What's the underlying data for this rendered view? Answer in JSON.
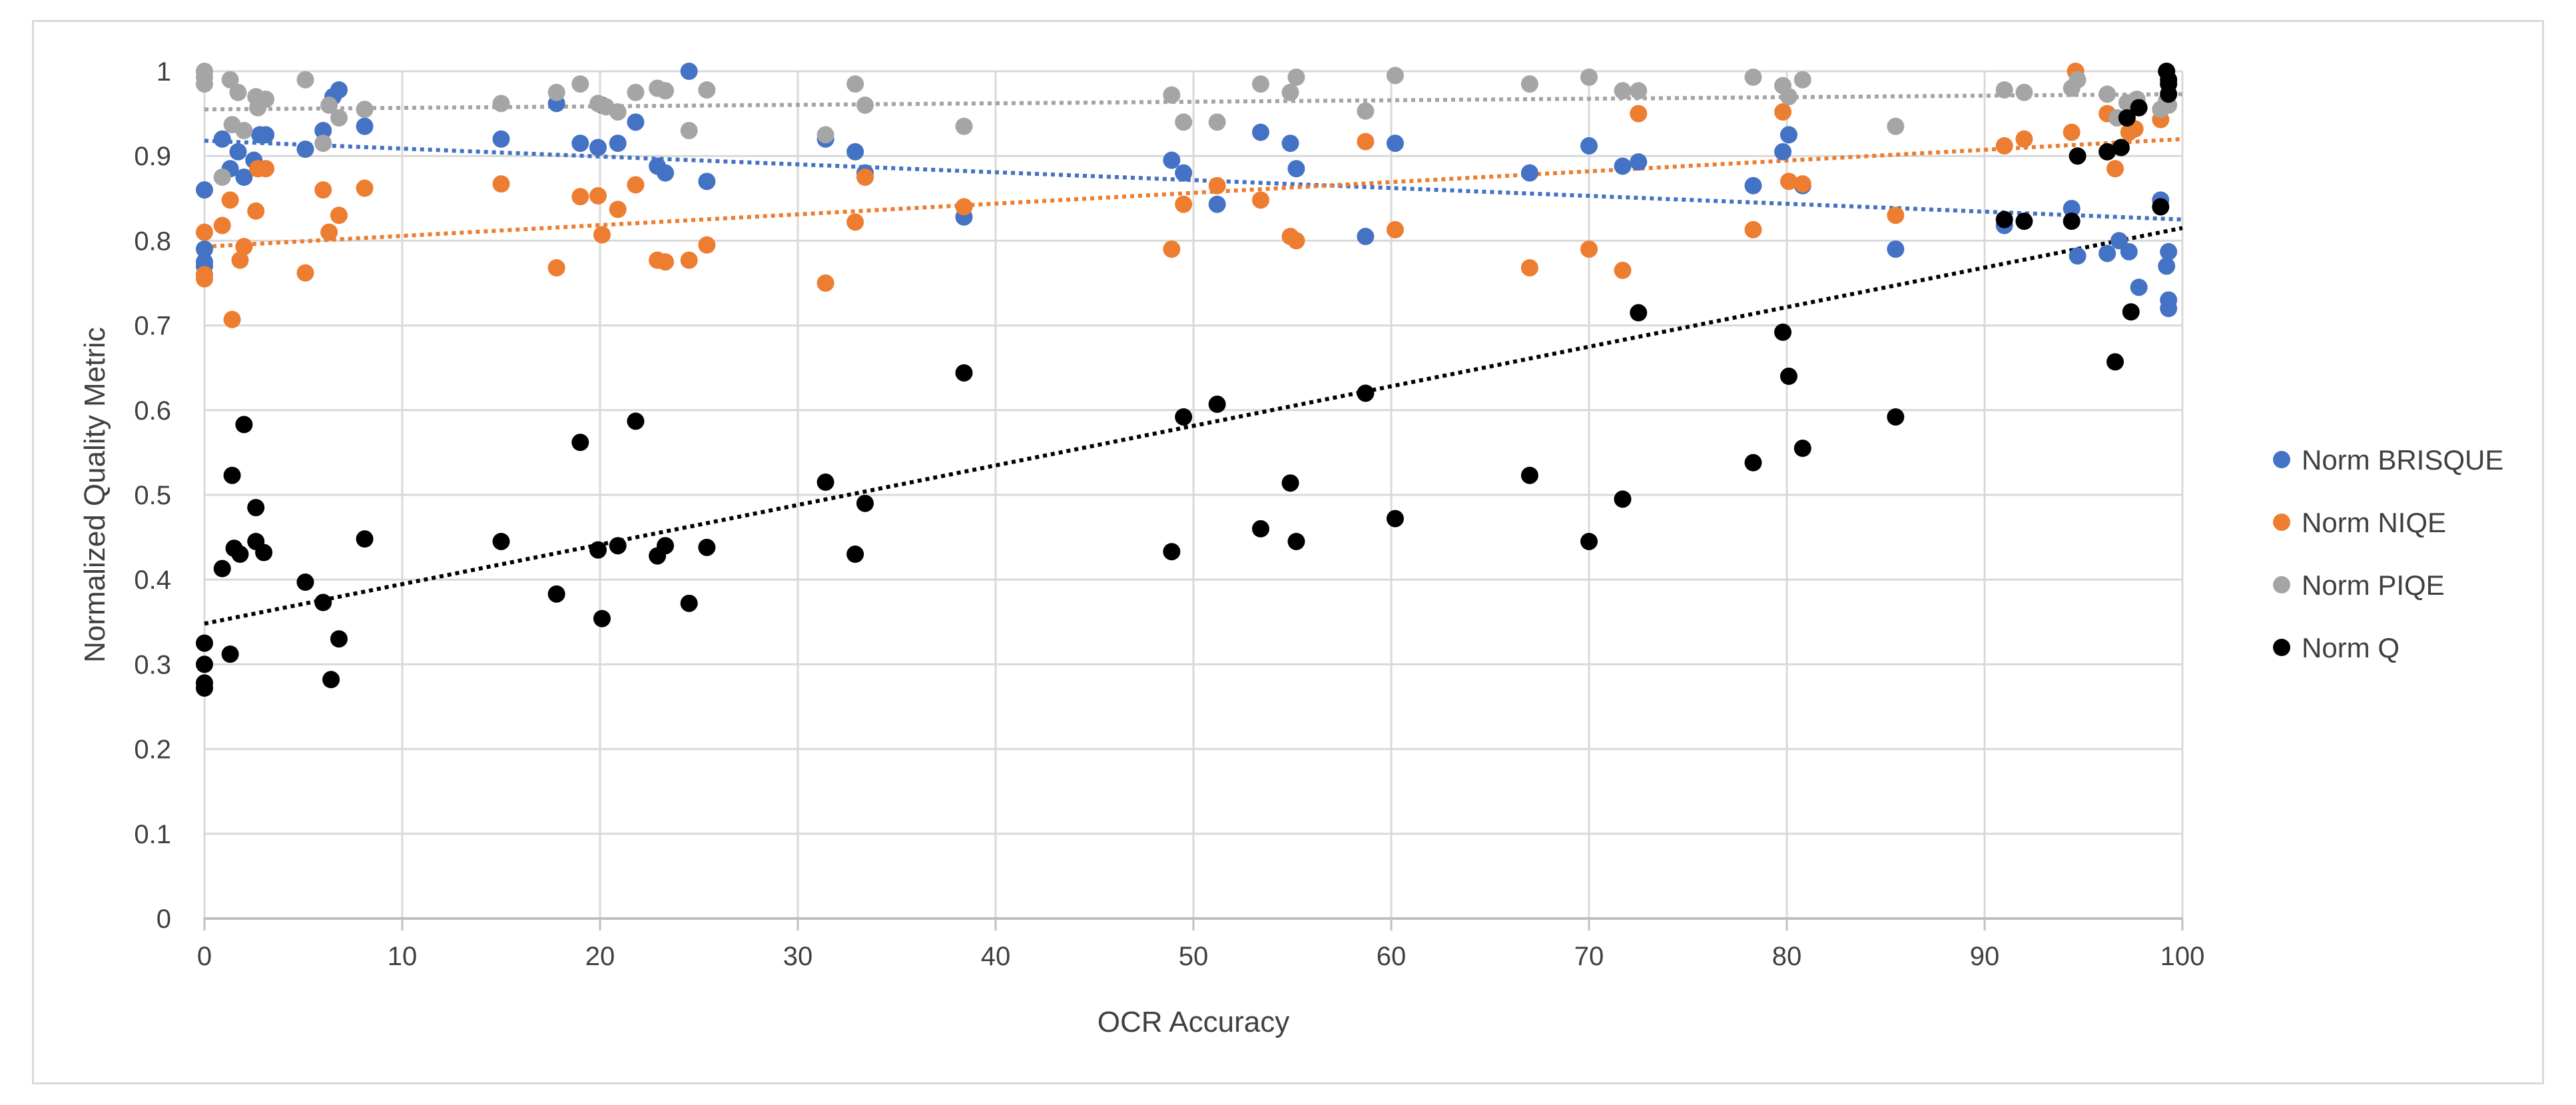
{
  "chart_data": {
    "type": "scatter",
    "title": "",
    "xlabel": "OCR Accuracy",
    "ylabel": "Normalized Quality Metric",
    "xlim": [
      0,
      100
    ],
    "ylim": [
      0,
      1
    ],
    "xticks": [
      "0",
      "10",
      "20",
      "30",
      "40",
      "50",
      "60",
      "70",
      "80",
      "90",
      "100"
    ],
    "yticks": [
      "0",
      "0.1",
      "0.2",
      "0.3",
      "0.4",
      "0.5",
      "0.6",
      "0.7",
      "0.8",
      "0.9",
      "1"
    ],
    "grid": true,
    "legend_position": "right",
    "series": [
      {
        "name": "Norm BRISQUE",
        "color": "#4472c4",
        "trendline": {
          "type": "linear",
          "y_at_x0": 0.918,
          "y_at_x100": 0.825
        },
        "points": [
          [
            0,
            0.86
          ],
          [
            0,
            0.79
          ],
          [
            0,
            0.775
          ],
          [
            0,
            0.77
          ],
          [
            0.9,
            0.92
          ],
          [
            1.3,
            0.885
          ],
          [
            1.7,
            0.905
          ],
          [
            2,
            0.875
          ],
          [
            2.5,
            0.895
          ],
          [
            2.8,
            0.925
          ],
          [
            3.1,
            0.925
          ],
          [
            5.1,
            0.908
          ],
          [
            6,
            0.93
          ],
          [
            6.5,
            0.97
          ],
          [
            6.8,
            0.978
          ],
          [
            8.1,
            0.935
          ],
          [
            15,
            0.92
          ],
          [
            17.8,
            0.962
          ],
          [
            19,
            0.915
          ],
          [
            19.9,
            0.91
          ],
          [
            20.1,
            0.96
          ],
          [
            20.9,
            0.915
          ],
          [
            21.8,
            0.94
          ],
          [
            22.9,
            0.888
          ],
          [
            23.3,
            0.88
          ],
          [
            24.5,
            1.0
          ],
          [
            25.4,
            0.87
          ],
          [
            31.4,
            0.92
          ],
          [
            32.9,
            0.905
          ],
          [
            33.4,
            0.88
          ],
          [
            38.4,
            0.828
          ],
          [
            48.9,
            0.895
          ],
          [
            49.5,
            0.88
          ],
          [
            51.2,
            0.843
          ],
          [
            53.4,
            0.928
          ],
          [
            54.9,
            0.915
          ],
          [
            55.2,
            0.885
          ],
          [
            58.7,
            0.805
          ],
          [
            60.2,
            0.915
          ],
          [
            67,
            0.88
          ],
          [
            70,
            0.912
          ],
          [
            71.7,
            0.888
          ],
          [
            72.5,
            0.893
          ],
          [
            78.3,
            0.865
          ],
          [
            79.8,
            0.905
          ],
          [
            80.1,
            0.925
          ],
          [
            80.8,
            0.865
          ],
          [
            85.5,
            0.79
          ],
          [
            91,
            0.818
          ],
          [
            94.4,
            0.838
          ],
          [
            94.7,
            0.782
          ],
          [
            96.2,
            0.785
          ],
          [
            96.8,
            0.8
          ],
          [
            97.3,
            0.787
          ],
          [
            97.8,
            0.745
          ],
          [
            98.9,
            0.848
          ],
          [
            99.2,
            0.77
          ],
          [
            99.3,
            0.787
          ],
          [
            99.3,
            0.73
          ],
          [
            99.3,
            0.72
          ]
        ]
      },
      {
        "name": "Norm NIQE",
        "color": "#ed7d31",
        "trendline": {
          "type": "linear",
          "y_at_x0": 0.793,
          "y_at_x100": 0.92
        },
        "points": [
          [
            0,
            0.81
          ],
          [
            0,
            0.76
          ],
          [
            0,
            0.755
          ],
          [
            0.9,
            0.818
          ],
          [
            1.3,
            0.848
          ],
          [
            1.4,
            0.707
          ],
          [
            1.8,
            0.777
          ],
          [
            2,
            0.793
          ],
          [
            2.6,
            0.835
          ],
          [
            2.7,
            0.885
          ],
          [
            3.1,
            0.885
          ],
          [
            5.1,
            0.762
          ],
          [
            6,
            0.86
          ],
          [
            6.3,
            0.81
          ],
          [
            6.8,
            0.83
          ],
          [
            8.1,
            0.862
          ],
          [
            15,
            0.867
          ],
          [
            17.8,
            0.768
          ],
          [
            19,
            0.852
          ],
          [
            19.9,
            0.853
          ],
          [
            20.1,
            0.807
          ],
          [
            20.9,
            0.837
          ],
          [
            21.8,
            0.866
          ],
          [
            22.9,
            0.777
          ],
          [
            23.3,
            0.775
          ],
          [
            24.5,
            0.777
          ],
          [
            25.4,
            0.795
          ],
          [
            31.4,
            0.75
          ],
          [
            32.9,
            0.822
          ],
          [
            33.4,
            0.875
          ],
          [
            38.4,
            0.84
          ],
          [
            48.9,
            0.79
          ],
          [
            49.5,
            0.843
          ],
          [
            51.2,
            0.865
          ],
          [
            53.4,
            0.848
          ],
          [
            54.9,
            0.805
          ],
          [
            55.2,
            0.8
          ],
          [
            58.7,
            0.917
          ],
          [
            60.2,
            0.813
          ],
          [
            67,
            0.768
          ],
          [
            70,
            0.79
          ],
          [
            71.7,
            0.765
          ],
          [
            72.5,
            0.95
          ],
          [
            78.3,
            0.813
          ],
          [
            79.8,
            0.952
          ],
          [
            80.1,
            0.87
          ],
          [
            80.8,
            0.867
          ],
          [
            85.5,
            0.83
          ],
          [
            91,
            0.912
          ],
          [
            92,
            0.92
          ],
          [
            94.4,
            0.928
          ],
          [
            94.6,
            1.0
          ],
          [
            96.2,
            0.95
          ],
          [
            96.6,
            0.885
          ],
          [
            97.3,
            0.928
          ],
          [
            97.6,
            0.932
          ],
          [
            98.9,
            0.943
          ],
          [
            99.2,
            0.963
          ]
        ]
      },
      {
        "name": "Norm PIQE",
        "color": "#a5a5a5",
        "trendline": {
          "type": "linear",
          "y_at_x0": 0.955,
          "y_at_x100": 0.973
        },
        "points": [
          [
            0,
            1.0
          ],
          [
            0,
            0.993
          ],
          [
            0,
            0.985
          ],
          [
            0.9,
            0.875
          ],
          [
            1.3,
            0.99
          ],
          [
            1.4,
            0.937
          ],
          [
            1.7,
            0.975
          ],
          [
            2,
            0.93
          ],
          [
            2.6,
            0.97
          ],
          [
            2.7,
            0.957
          ],
          [
            3.1,
            0.967
          ],
          [
            5.1,
            0.99
          ],
          [
            6,
            0.915
          ],
          [
            6.3,
            0.96
          ],
          [
            6.8,
            0.945
          ],
          [
            8.1,
            0.955
          ],
          [
            15,
            0.962
          ],
          [
            17.8,
            0.975
          ],
          [
            19,
            0.985
          ],
          [
            19.9,
            0.962
          ],
          [
            20.3,
            0.958
          ],
          [
            20.9,
            0.952
          ],
          [
            21.8,
            0.975
          ],
          [
            22.9,
            0.98
          ],
          [
            23.3,
            0.977
          ],
          [
            24.5,
            0.93
          ],
          [
            25.4,
            0.978
          ],
          [
            31.4,
            0.925
          ],
          [
            32.9,
            0.985
          ],
          [
            33.4,
            0.96
          ],
          [
            38.4,
            0.935
          ],
          [
            48.9,
            0.972
          ],
          [
            49.5,
            0.94
          ],
          [
            51.2,
            0.94
          ],
          [
            53.4,
            0.985
          ],
          [
            54.9,
            0.975
          ],
          [
            55.2,
            0.993
          ],
          [
            58.7,
            0.953
          ],
          [
            60.2,
            0.995
          ],
          [
            67,
            0.985
          ],
          [
            70,
            0.993
          ],
          [
            71.7,
            0.977
          ],
          [
            72.5,
            0.977
          ],
          [
            78.3,
            0.993
          ],
          [
            79.8,
            0.983
          ],
          [
            80.1,
            0.97
          ],
          [
            80.8,
            0.99
          ],
          [
            85.5,
            0.935
          ],
          [
            91,
            0.978
          ],
          [
            92,
            0.975
          ],
          [
            94.4,
            0.98
          ],
          [
            94.7,
            0.99
          ],
          [
            96.2,
            0.973
          ],
          [
            96.7,
            0.945
          ],
          [
            97.2,
            0.963
          ],
          [
            97.7,
            0.967
          ],
          [
            98.9,
            0.955
          ],
          [
            99.2,
            0.965
          ],
          [
            99.3,
            0.96
          ]
        ]
      },
      {
        "name": "Norm Q",
        "color": "#000000",
        "trendline": {
          "type": "linear",
          "y_at_x0": 0.348,
          "y_at_x100": 0.815
        },
        "points": [
          [
            0,
            0.325
          ],
          [
            0,
            0.3
          ],
          [
            0,
            0.278
          ],
          [
            0,
            0.272
          ],
          [
            0.9,
            0.413
          ],
          [
            1.3,
            0.312
          ],
          [
            1.4,
            0.523
          ],
          [
            1.5,
            0.437
          ],
          [
            1.8,
            0.43
          ],
          [
            2,
            0.583
          ],
          [
            2.6,
            0.485
          ],
          [
            2.6,
            0.445
          ],
          [
            3,
            0.432
          ],
          [
            5.1,
            0.397
          ],
          [
            6,
            0.373
          ],
          [
            6.4,
            0.282
          ],
          [
            6.8,
            0.33
          ],
          [
            8.1,
            0.448
          ],
          [
            15,
            0.445
          ],
          [
            17.8,
            0.383
          ],
          [
            19,
            0.562
          ],
          [
            19.9,
            0.435
          ],
          [
            20.1,
            0.354
          ],
          [
            20.9,
            0.44
          ],
          [
            21.8,
            0.587
          ],
          [
            22.9,
            0.428
          ],
          [
            23.3,
            0.44
          ],
          [
            24.5,
            0.372
          ],
          [
            25.4,
            0.438
          ],
          [
            31.4,
            0.515
          ],
          [
            32.9,
            0.43
          ],
          [
            33.4,
            0.49
          ],
          [
            38.4,
            0.644
          ],
          [
            48.9,
            0.433
          ],
          [
            49.5,
            0.592
          ],
          [
            51.2,
            0.607
          ],
          [
            53.4,
            0.46
          ],
          [
            54.9,
            0.514
          ],
          [
            55.2,
            0.445
          ],
          [
            58.7,
            0.62
          ],
          [
            60.2,
            0.472
          ],
          [
            67,
            0.523
          ],
          [
            70,
            0.445
          ],
          [
            71.7,
            0.495
          ],
          [
            72.5,
            0.715
          ],
          [
            78.3,
            0.538
          ],
          [
            79.8,
            0.692
          ],
          [
            80.1,
            0.64
          ],
          [
            80.8,
            0.555
          ],
          [
            85.5,
            0.592
          ],
          [
            91,
            0.825
          ],
          [
            92,
            0.823
          ],
          [
            94.4,
            0.823
          ],
          [
            94.7,
            0.9
          ],
          [
            96.2,
            0.905
          ],
          [
            96.6,
            0.657
          ],
          [
            96.9,
            0.91
          ],
          [
            97.2,
            0.945
          ],
          [
            97.4,
            0.716
          ],
          [
            97.8,
            0.957
          ],
          [
            98.9,
            0.84
          ],
          [
            99.2,
            1.0
          ],
          [
            99.3,
            0.99
          ],
          [
            99.3,
            0.985
          ],
          [
            99.3,
            0.973
          ]
        ]
      }
    ]
  }
}
